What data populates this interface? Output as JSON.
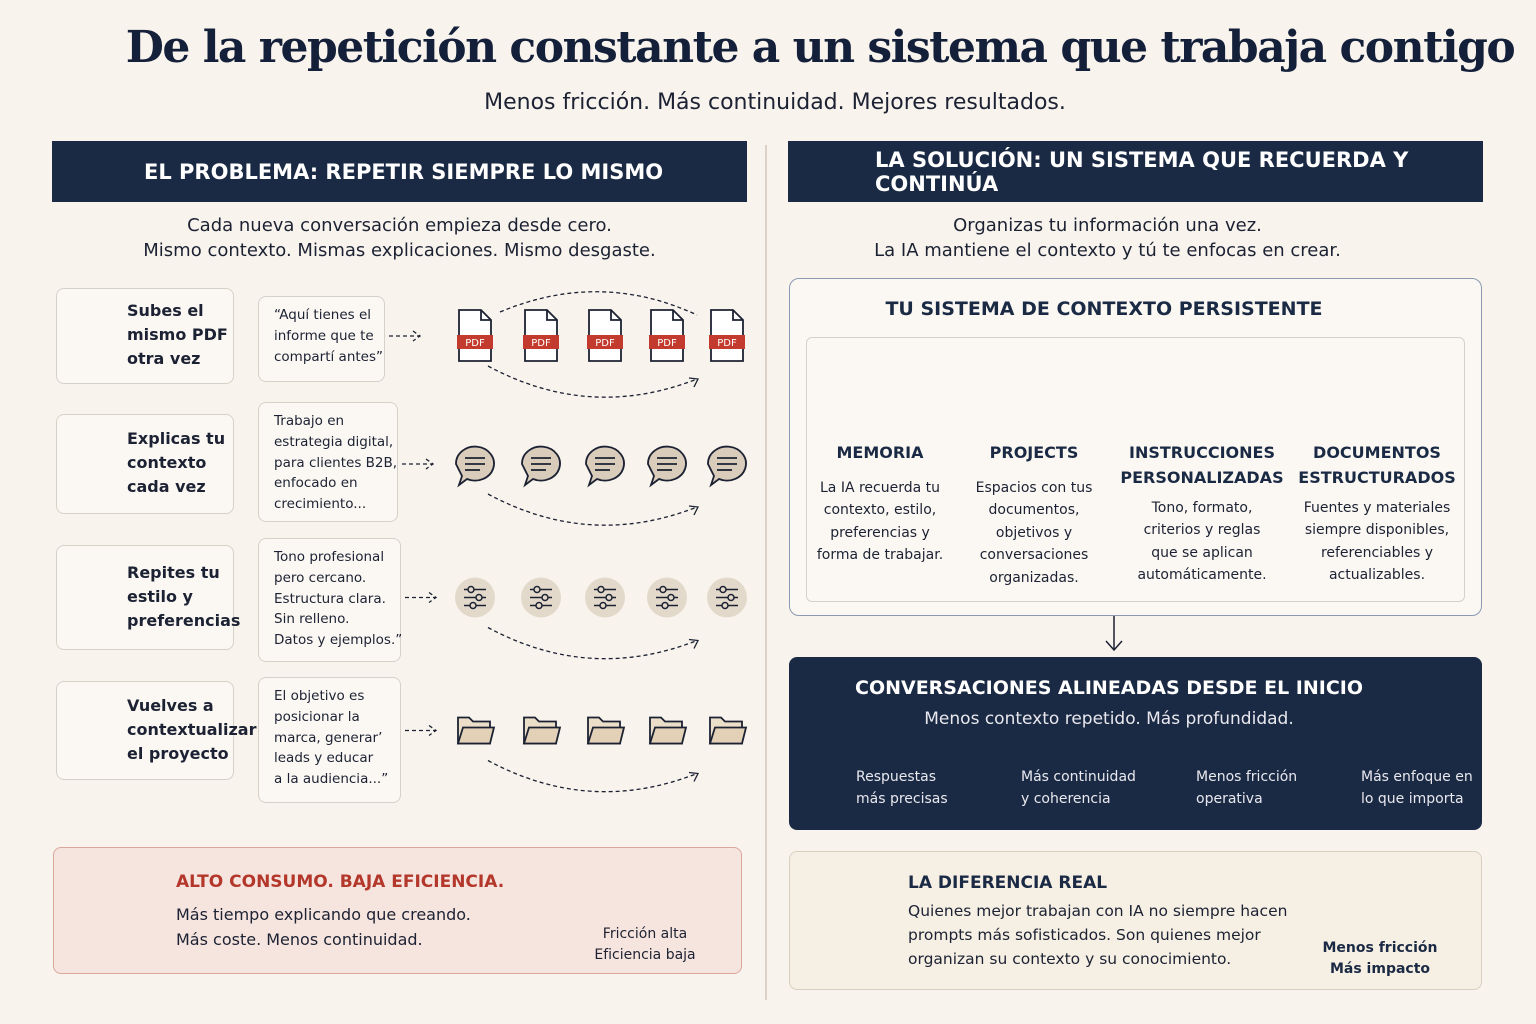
{
  "header": {
    "title": "De la repetición constante a un sistema que trabaja contigo",
    "subtitle": "Menos fricción. Más continuidad. Mejores resultados."
  },
  "problem": {
    "heading": "EL PROBLEMA: REPETIR SIEMPRE LO MISMO",
    "intro": [
      "Cada nueva conversación empieza desde cero.",
      "Mismo contexto. Mismas explicaciones. Mismo desgaste."
    ],
    "pdf_label": "PDF",
    "rows": [
      {
        "label": [
          "Subes el",
          "mismo PDF",
          "otra vez"
        ],
        "quote": [
          "“Aquí tienes el",
          "informe que te",
          "compartí antes”"
        ]
      },
      {
        "label": [
          "Explicas tu",
          "contexto",
          "cada vez"
        ],
        "quote": [
          "Trabajo en",
          "estrategia digital,",
          "para clientes B2B,",
          "enfocado en",
          "crecimiento..."
        ]
      },
      {
        "label": [
          "Repites tu",
          "estilo y",
          "preferencias"
        ],
        "quote": [
          "Tono profesional",
          "pero cercano.",
          "Estructura clara.",
          "Sin relleno.",
          "Datos y ejemplos.”"
        ]
      },
      {
        "label": [
          "Vuelves a",
          "contextualizar",
          "el proyecto"
        ],
        "quote": [
          "El objetivo es",
          "posicionar la",
          "marca, generar’",
          "leads y educar",
          "a la audiencia...”"
        ]
      }
    ],
    "summary": {
      "title": "ALTO CONSUMO. BAJA EFICIENCIA.",
      "lines": [
        "Más tiempo explicando que creando.",
        "Más coste. Menos continuidad."
      ],
      "caption": [
        "Fricción alta",
        "Eficiencia baja"
      ]
    }
  },
  "solution": {
    "heading": "LA SOLUCIÓN: UN SISTEMA QUE RECUERDA Y CONTINÚA",
    "intro": [
      "Organizas tu información una vez.",
      "La IA mantiene el contexto y tú te enfocas en crear."
    ],
    "system": {
      "title": "TU SISTEMA DE CONTEXTO PERSISTENTE",
      "columns": [
        {
          "title": [
            "MEMORIA"
          ],
          "text": [
            "La IA recuerda tu",
            "contexto, estilo,",
            "preferencias y",
            "forma de trabajar."
          ]
        },
        {
          "title": [
            "PROJECTS"
          ],
          "text": [
            "Espacios con tus",
            "documentos,",
            "objetivos y",
            "conversaciones",
            "organizadas."
          ]
        },
        {
          "title": [
            "INSTRUCCIONES",
            "PERSONALIZADAS"
          ],
          "text": [
            "Tono, formato,",
            "criterios y reglas",
            "que se aplican",
            "automáticamente."
          ]
        },
        {
          "title": [
            "DOCUMENTOS",
            "ESTRUCTURADOS"
          ],
          "text": [
            "Fuentes y materiales",
            "siempre disponibles,",
            "referenciables y",
            "actualizables."
          ]
        }
      ]
    },
    "result": {
      "title": "CONVERSACIONES ALINEADAS DESDE EL INICIO",
      "subtitle": "Menos contexto repetido. Más profundidad.",
      "benefits": [
        [
          "Respuestas",
          "más precisas"
        ],
        [
          "Más continuidad",
          "y coherencia"
        ],
        [
          "Menos fricción",
          "operativa"
        ],
        [
          "Más enfoque en",
          "lo que importa"
        ]
      ]
    },
    "difference": {
      "title": "LA DIFERENCIA REAL",
      "lines": [
        "Quienes mejor trabajan con IA no siempre hacen",
        "prompts más sofisticados. Son quienes mejor",
        "organizan su contexto y su conocimiento."
      ],
      "caption": [
        "Menos fricción",
        "Más impacto"
      ]
    }
  }
}
